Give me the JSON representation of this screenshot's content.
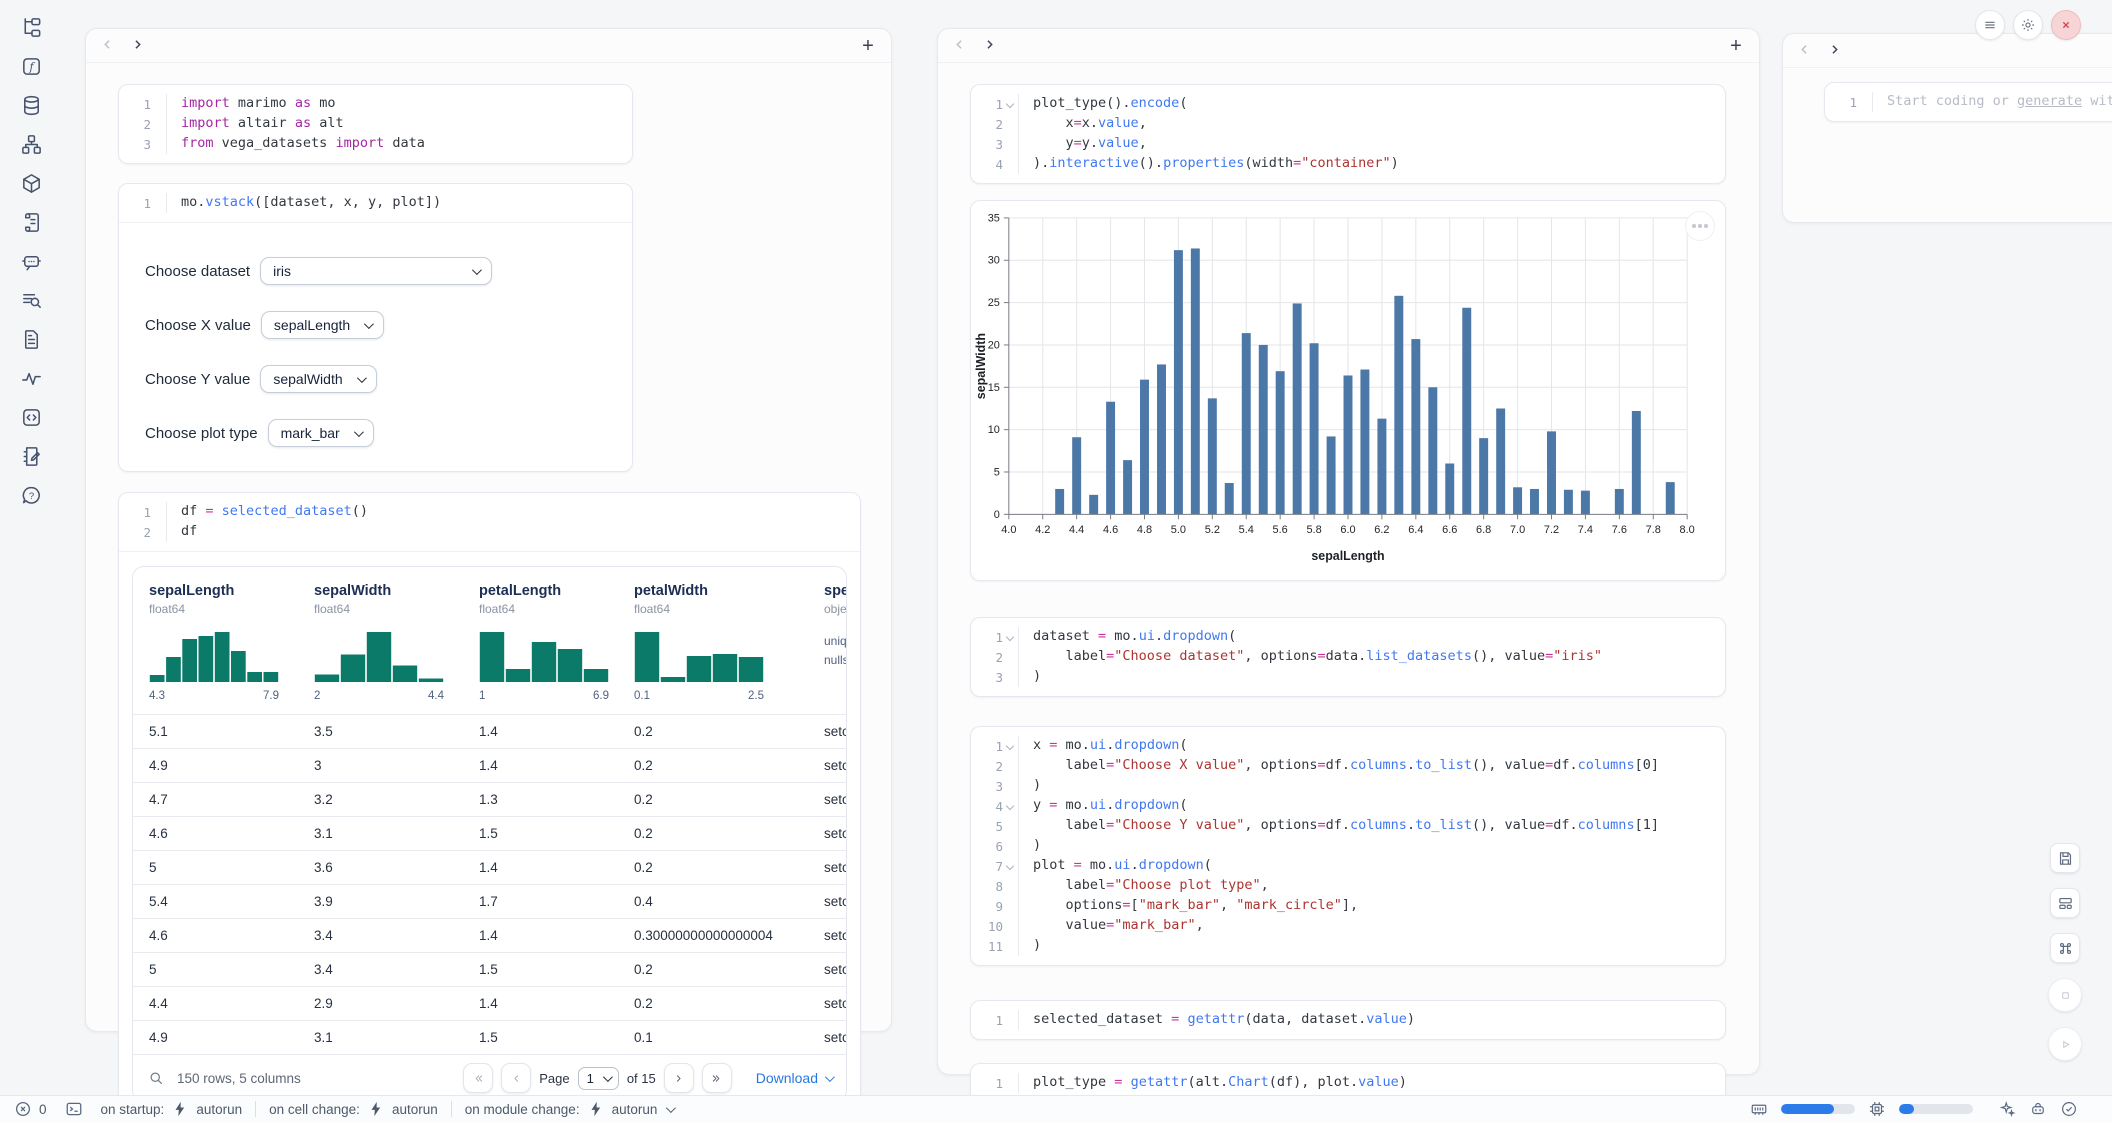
{
  "colors": {
    "hist": "#0c7a68",
    "bar": "#4c78a8",
    "accent": "#2779e0",
    "progress": "#2b7ce9",
    "close": "#e5484d"
  },
  "sidebar": {
    "items": [
      {
        "icon": "file-tree-icon"
      },
      {
        "icon": "function-icon"
      },
      {
        "icon": "database-icon"
      },
      {
        "icon": "dependency-graph-icon"
      },
      {
        "icon": "package-icon"
      },
      {
        "icon": "script-icon"
      },
      {
        "icon": "chat-bot-icon"
      },
      {
        "icon": "search-list-icon"
      },
      {
        "icon": "document-icon"
      },
      {
        "icon": "activity-icon"
      },
      {
        "icon": "code-snippet-icon"
      },
      {
        "icon": "scratchpad-icon"
      },
      {
        "icon": "help-icon"
      }
    ]
  },
  "left": {
    "cells": {
      "imports": {
        "folds": [],
        "lines": [
          [
            [
              "k",
              "import"
            ],
            [
              "t",
              " marimo "
            ],
            [
              "k",
              "as"
            ],
            [
              "t",
              " mo"
            ]
          ],
          [
            [
              "k",
              "import"
            ],
            [
              "t",
              " altair "
            ],
            [
              "k",
              "as"
            ],
            [
              "t",
              " alt"
            ]
          ],
          [
            [
              "k",
              "from"
            ],
            [
              "t",
              " vega_datasets "
            ],
            [
              "k",
              "import"
            ],
            [
              "t",
              " data"
            ]
          ]
        ]
      },
      "vstack": {
        "folds": [],
        "lines": [
          [
            [
              "t",
              "mo."
            ],
            [
              "f",
              "vstack"
            ],
            [
              "t",
              "([dataset, x, y, plot])"
            ]
          ]
        ]
      },
      "df": {
        "folds": [],
        "lines": [
          [
            [
              "t",
              "df "
            ],
            [
              "o",
              "="
            ],
            [
              "t",
              " "
            ],
            [
              "f",
              "selected_dataset"
            ],
            [
              "t",
              "()"
            ]
          ],
          [
            [
              "t",
              "df"
            ]
          ]
        ]
      }
    },
    "form": {
      "rows": [
        {
          "label": "Choose dataset",
          "value": "iris",
          "wide": true
        },
        {
          "label": "Choose X value",
          "value": "sepalLength",
          "wide": false
        },
        {
          "label": "Choose Y value",
          "value": "sepalWidth",
          "wide": false
        },
        {
          "label": "Choose plot type",
          "value": "mark_bar",
          "wide": false
        }
      ]
    },
    "table": {
      "columns": [
        {
          "name": "sepalLength",
          "dtype": "float64",
          "hist": [
            0.14,
            0.5,
            0.86,
            0.92,
            1.0,
            0.62,
            0.2,
            0.2
          ],
          "min": "4.3",
          "max": "7.9"
        },
        {
          "name": "sepalWidth",
          "dtype": "float64",
          "hist": [
            0.15,
            0.55,
            1.0,
            0.33,
            0.07
          ],
          "min": "2",
          "max": "4.4"
        },
        {
          "name": "petalLength",
          "dtype": "float64",
          "hist": [
            1.0,
            0.26,
            0.8,
            0.66,
            0.26
          ],
          "min": "1",
          "max": "6.9"
        },
        {
          "name": "petalWidth",
          "dtype": "float64",
          "hist": [
            1.0,
            0.1,
            0.52,
            0.56,
            0.5
          ],
          "min": "0.1",
          "max": "2.5"
        },
        {
          "name": "species",
          "dtype": "object",
          "meta": [
            "unique",
            "nulls:"
          ]
        }
      ],
      "rows": [
        [
          "5.1",
          "3.5",
          "1.4",
          "0.2",
          "setosa"
        ],
        [
          "4.9",
          "3",
          "1.4",
          "0.2",
          "setosa"
        ],
        [
          "4.7",
          "3.2",
          "1.3",
          "0.2",
          "setosa"
        ],
        [
          "4.6",
          "3.1",
          "1.5",
          "0.2",
          "setosa"
        ],
        [
          "5",
          "3.6",
          "1.4",
          "0.2",
          "setosa"
        ],
        [
          "5.4",
          "3.9",
          "1.7",
          "0.4",
          "setosa"
        ],
        [
          "4.6",
          "3.4",
          "1.4",
          "0.30000000000000004",
          "setosa"
        ],
        [
          "5",
          "3.4",
          "1.5",
          "0.2",
          "setosa"
        ],
        [
          "4.4",
          "2.9",
          "1.4",
          "0.2",
          "setosa"
        ],
        [
          "4.9",
          "3.1",
          "1.5",
          "0.1",
          "setosa"
        ]
      ],
      "footer": {
        "summary": "150 rows, 5 columns",
        "page_label": "Page",
        "page_value": "1",
        "of_label": "of 15",
        "download_label": "Download"
      }
    }
  },
  "middle": {
    "cells": {
      "plot": {
        "folds": [
          1
        ],
        "lines": [
          [
            [
              "t",
              "plot_type"
            ],
            [
              "t",
              "()."
            ],
            [
              "f",
              "encode"
            ],
            [
              "t",
              "("
            ]
          ],
          [
            [
              "t",
              "    x"
            ],
            [
              "o",
              "="
            ],
            [
              "t",
              "x."
            ],
            [
              "f",
              "value"
            ],
            [
              "t",
              ","
            ]
          ],
          [
            [
              "t",
              "    y"
            ],
            [
              "o",
              "="
            ],
            [
              "t",
              "y."
            ],
            [
              "f",
              "value"
            ],
            [
              "t",
              ","
            ]
          ],
          [
            [
              "t",
              ")."
            ],
            [
              "f",
              "interactive"
            ],
            [
              "t",
              "()."
            ],
            [
              "f",
              "properties"
            ],
            [
              "t",
              "(width"
            ],
            [
              "o",
              "="
            ],
            [
              "s",
              "\"container\""
            ],
            [
              "t",
              ")"
            ]
          ]
        ]
      },
      "dataset": {
        "folds": [
          1
        ],
        "lines": [
          [
            [
              "t",
              "dataset "
            ],
            [
              "o",
              "="
            ],
            [
              "t",
              " mo."
            ],
            [
              "f",
              "ui"
            ],
            [
              "t",
              "."
            ],
            [
              "f",
              "dropdown"
            ],
            [
              "t",
              "("
            ]
          ],
          [
            [
              "t",
              "    label"
            ],
            [
              "o",
              "="
            ],
            [
              "s",
              "\"Choose dataset\""
            ],
            [
              "t",
              ", options"
            ],
            [
              "o",
              "="
            ],
            [
              "t",
              "data."
            ],
            [
              "f",
              "list_datasets"
            ],
            [
              "t",
              "(), value"
            ],
            [
              "o",
              "="
            ],
            [
              "s",
              "\"iris\""
            ]
          ],
          [
            [
              "t",
              ")"
            ]
          ]
        ]
      },
      "xy": {
        "folds": [
          1,
          4,
          7
        ],
        "lines": [
          [
            [
              "t",
              "x "
            ],
            [
              "o",
              "="
            ],
            [
              "t",
              " mo."
            ],
            [
              "f",
              "ui"
            ],
            [
              "t",
              "."
            ],
            [
              "f",
              "dropdown"
            ],
            [
              "t",
              "("
            ]
          ],
          [
            [
              "t",
              "    label"
            ],
            [
              "o",
              "="
            ],
            [
              "s",
              "\"Choose X value\""
            ],
            [
              "t",
              ", options"
            ],
            [
              "o",
              "="
            ],
            [
              "t",
              "df."
            ],
            [
              "f",
              "columns"
            ],
            [
              "t",
              "."
            ],
            [
              "f",
              "to_list"
            ],
            [
              "t",
              "(), value"
            ],
            [
              "o",
              "="
            ],
            [
              "t",
              "df."
            ],
            [
              "f",
              "columns"
            ],
            [
              "t",
              "[0]"
            ]
          ],
          [
            [
              "t",
              ")"
            ]
          ],
          [
            [
              "t",
              "y "
            ],
            [
              "o",
              "="
            ],
            [
              "t",
              " mo."
            ],
            [
              "f",
              "ui"
            ],
            [
              "t",
              "."
            ],
            [
              "f",
              "dropdown"
            ],
            [
              "t",
              "("
            ]
          ],
          [
            [
              "t",
              "    label"
            ],
            [
              "o",
              "="
            ],
            [
              "s",
              "\"Choose Y value\""
            ],
            [
              "t",
              ", options"
            ],
            [
              "o",
              "="
            ],
            [
              "t",
              "df."
            ],
            [
              "f",
              "columns"
            ],
            [
              "t",
              "."
            ],
            [
              "f",
              "to_list"
            ],
            [
              "t",
              "(), value"
            ],
            [
              "o",
              "="
            ],
            [
              "t",
              "df."
            ],
            [
              "f",
              "columns"
            ],
            [
              "t",
              "[1]"
            ]
          ],
          [
            [
              "t",
              ")"
            ]
          ],
          [
            [
              "t",
              "plot "
            ],
            [
              "o",
              "="
            ],
            [
              "t",
              " mo."
            ],
            [
              "f",
              "ui"
            ],
            [
              "t",
              "."
            ],
            [
              "f",
              "dropdown"
            ],
            [
              "t",
              "("
            ]
          ],
          [
            [
              "t",
              "    label"
            ],
            [
              "o",
              "="
            ],
            [
              "s",
              "\"Choose plot type\""
            ],
            [
              "t",
              ","
            ]
          ],
          [
            [
              "t",
              "    options"
            ],
            [
              "o",
              "="
            ],
            [
              "t",
              "["
            ],
            [
              "s",
              "\"mark_bar\""
            ],
            [
              "t",
              ", "
            ],
            [
              "s",
              "\"mark_circle\""
            ],
            [
              "t",
              "],"
            ]
          ],
          [
            [
              "t",
              "    value"
            ],
            [
              "o",
              "="
            ],
            [
              "s",
              "\"mark_bar\""
            ],
            [
              "t",
              ","
            ]
          ],
          [
            [
              "t",
              ")"
            ]
          ]
        ]
      },
      "selected": {
        "folds": [],
        "lines": [
          [
            [
              "t",
              "selected_dataset "
            ],
            [
              "o",
              "="
            ],
            [
              "t",
              " "
            ],
            [
              "f",
              "getattr"
            ],
            [
              "t",
              "(data, dataset."
            ],
            [
              "f",
              "value"
            ],
            [
              "t",
              ")"
            ]
          ]
        ]
      },
      "plottype": {
        "folds": [],
        "lines": [
          [
            [
              "t",
              "plot_type "
            ],
            [
              "o",
              "="
            ],
            [
              "t",
              " "
            ],
            [
              "f",
              "getattr"
            ],
            [
              "t",
              "(alt."
            ],
            [
              "f",
              "Chart"
            ],
            [
              "t",
              "(df), plot."
            ],
            [
              "f",
              "value"
            ],
            [
              "t",
              ")"
            ]
          ]
        ]
      }
    }
  },
  "chart_data": {
    "type": "bar",
    "x": [
      4.3,
      4.4,
      4.5,
      4.6,
      4.7,
      4.8,
      4.9,
      5.0,
      5.1,
      5.2,
      5.3,
      5.4,
      5.5,
      5.6,
      5.7,
      5.8,
      5.9,
      6.0,
      6.1,
      6.2,
      6.3,
      6.4,
      6.5,
      6.6,
      6.7,
      6.8,
      6.9,
      7.0,
      7.1,
      7.2,
      7.3,
      7.4,
      7.6,
      7.7,
      7.9
    ],
    "values": [
      3.0,
      9.1,
      2.3,
      13.3,
      6.4,
      15.9,
      17.7,
      31.2,
      31.4,
      13.7,
      3.7,
      21.4,
      20.0,
      16.9,
      24.9,
      20.2,
      9.2,
      16.4,
      17.1,
      11.3,
      25.8,
      20.7,
      15.0,
      6.0,
      24.4,
      9.0,
      12.5,
      3.2,
      3.0,
      9.8,
      2.9,
      2.8,
      3.0,
      12.2,
      3.8
    ],
    "title": "",
    "xlabel": "sepalLength",
    "ylabel": "sepalWidth",
    "xlim": [
      4.0,
      8.0
    ],
    "x_tick_step": 0.2,
    "ylim": [
      0,
      35
    ],
    "y_ticks": [
      0,
      5,
      10,
      15,
      20,
      25,
      30,
      35
    ],
    "bar_color": "#4c78a8",
    "grid": true,
    "legend": null
  },
  "scratch": {
    "line_no": "1",
    "placeholder_parts": [
      [
        "t",
        "Start coding or "
      ],
      [
        "u",
        "generate"
      ],
      [
        "t",
        " with AI"
      ]
    ]
  },
  "statusbar": {
    "error_count": "0",
    "runs": [
      {
        "label": "on startup:",
        "value": "autorun",
        "chevron": false
      },
      {
        "label": "on cell change:",
        "value": "autorun",
        "chevron": false
      },
      {
        "label": "on module change:",
        "value": "autorun",
        "chevron": true
      }
    ],
    "ram_fill_pct": 72,
    "cpu_fill_pct": 20
  }
}
